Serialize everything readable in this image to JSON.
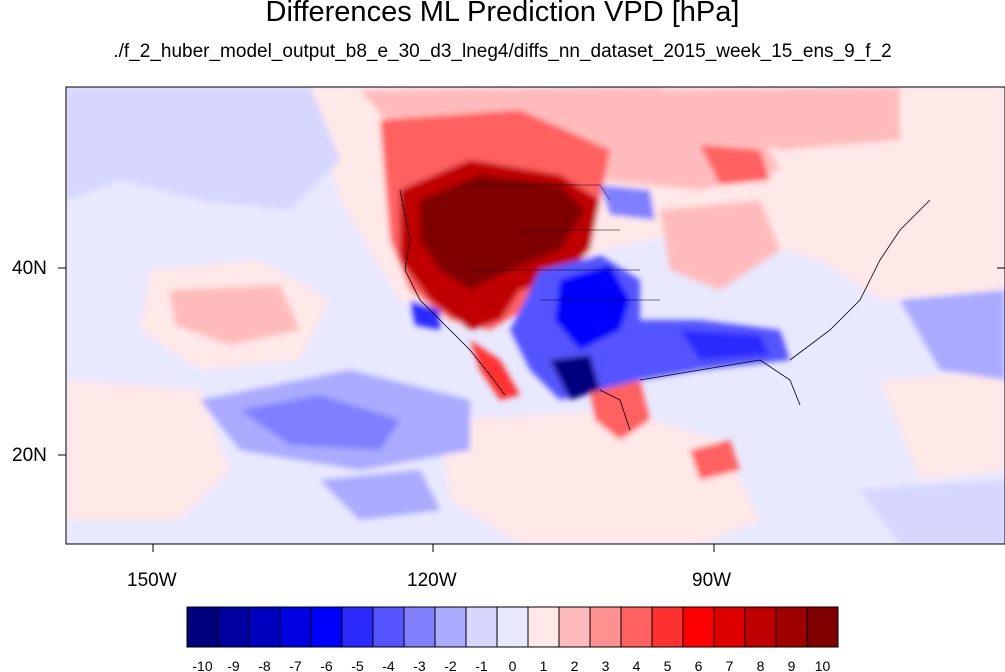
{
  "title": "Differences ML Prediction VPD [hPa]",
  "subtitle": "./f_2_huber_model_output_b8_e_30_d3_lneg4/diffs_nn_dataset_2015_week_15_ens_9_f_2",
  "lat_labels": [
    "40N",
    "20N"
  ],
  "lon_labels": [
    "150W",
    "120W",
    "90W"
  ],
  "colorbar": {
    "ticks": [
      "-10",
      "-9",
      "-8",
      "-7",
      "-6",
      "-5",
      "-4",
      "-3",
      "-2",
      "-1",
      "0",
      "1",
      "2",
      "3",
      "4",
      "5",
      "6",
      "7",
      "8",
      "9",
      "10"
    ],
    "colors": [
      "#00007f",
      "#0000a0",
      "#0000c0",
      "#0000e0",
      "#0000ff",
      "#2b2bff",
      "#5555ff",
      "#8080ff",
      "#aaaaff",
      "#d6d6ff",
      "#e8e8ff",
      "#ffe8e8",
      "#ffbbbb",
      "#ff9090",
      "#ff6060",
      "#ff3030",
      "#ff0000",
      "#e00000",
      "#c00000",
      "#a00000",
      "#800000"
    ]
  },
  "colors": {
    "background_field": "#e8e8ff",
    "strong_positive": "#800000",
    "strong_negative": "#00007f"
  }
}
